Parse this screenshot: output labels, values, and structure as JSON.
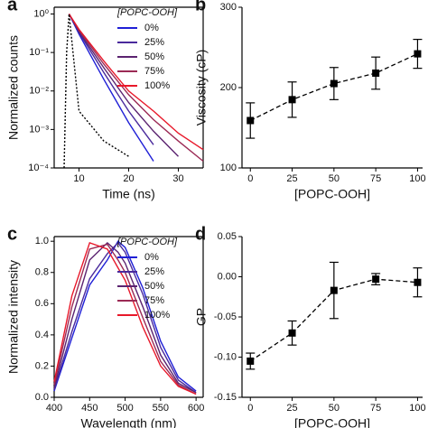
{
  "chart_data": [
    {
      "type": "line",
      "label": "a",
      "xlabel": "Time (ns)",
      "ylabel": "Normalized counts",
      "log_y": true,
      "frame": true,
      "xlim": [
        5,
        35
      ],
      "xticks": [
        10,
        20,
        30
      ],
      "ylim": [
        0.0001,
        1.5
      ],
      "yticks": [
        {
          "value": 0.0001,
          "label": "10⁻⁴"
        },
        {
          "value": 0.001,
          "label": "10⁻³"
        },
        {
          "value": 0.01,
          "label": "10⁻²"
        },
        {
          "value": 0.1,
          "label": "10⁻¹"
        },
        {
          "value": 1,
          "label": "10⁰"
        }
      ],
      "legend_title": "[POPC-OOH]",
      "x": [
        7,
        7.5,
        8,
        10,
        15,
        20,
        25,
        30,
        35
      ],
      "series": [
        {
          "name": "0%",
          "color": "#1f1fd6",
          "values": [
            null,
            null,
            1,
            0.3,
            0.02,
            0.0015,
            0.00015,
            null,
            null
          ]
        },
        {
          "name": "25%",
          "color": "#4a2a9c",
          "values": [
            null,
            null,
            1,
            0.33,
            0.03,
            0.003,
            0.0004,
            null,
            null
          ]
        },
        {
          "name": "50%",
          "color": "#5b2370",
          "values": [
            null,
            null,
            1,
            0.35,
            0.04,
            0.005,
            0.0009,
            0.0002,
            null
          ]
        },
        {
          "name": "75%",
          "color": "#9b2a55",
          "values": [
            null,
            null,
            1,
            0.38,
            0.05,
            0.008,
            0.0018,
            0.0005,
            0.00015
          ]
        },
        {
          "name": "100%",
          "color": "#e8182a",
          "values": [
            null,
            null,
            1,
            0.4,
            0.06,
            0.01,
            0.003,
            0.0008,
            0.0003
          ]
        },
        {
          "color": "#000000",
          "dash": true,
          "values": [
            0.0001,
            0.1,
            1,
            0.003,
            0.0005,
            0.0002,
            null,
            null,
            null
          ]
        }
      ]
    },
    {
      "type": "errorbar",
      "label": "b",
      "xlabel": "[POPC-OOH]",
      "ylabel": "Viscosity (cP)",
      "frame": false,
      "xlim": [
        -5,
        103
      ],
      "xticks": [
        0,
        25,
        50,
        75,
        100
      ],
      "ylim": [
        100,
        300
      ],
      "yticks": [
        100,
        200,
        300
      ],
      "x": [
        0,
        25,
        50,
        75,
        100
      ],
      "values": [
        159,
        185,
        205,
        218,
        242
      ],
      "errors": [
        22,
        22,
        20,
        20,
        18
      ],
      "color": "#000000"
    },
    {
      "type": "line",
      "label": "c",
      "xlabel": "Wavelength (nm)",
      "ylabel": "Normalized intensity",
      "frame": true,
      "xlim": [
        400,
        610
      ],
      "xticks": [
        400,
        450,
        500,
        550,
        600
      ],
      "ylim": [
        0,
        1.03
      ],
      "yticks": [
        {
          "value": 0,
          "label": "0.0"
        },
        {
          "value": 0.2,
          "label": "0.2"
        },
        {
          "value": 0.4,
          "label": "0.4"
        },
        {
          "value": 0.6,
          "label": "0.6"
        },
        {
          "value": 0.8,
          "label": "0.8"
        },
        {
          "value": 1,
          "label": "1.0"
        }
      ],
      "legend_title": "[POPC-OOH]",
      "x": [
        400,
        425,
        450,
        475,
        490,
        500,
        525,
        550,
        575,
        600
      ],
      "series": [
        {
          "name": "0%",
          "color": "#1f1fd6",
          "values": [
            0.04,
            0.38,
            0.72,
            0.88,
            1,
            0.96,
            0.7,
            0.36,
            0.13,
            0.04
          ]
        },
        {
          "name": "25%",
          "color": "#4a2a9c",
          "values": [
            0.05,
            0.42,
            0.76,
            0.92,
            0.99,
            0.93,
            0.66,
            0.32,
            0.11,
            0.03
          ]
        },
        {
          "name": "50%",
          "color": "#5b2370",
          "values": [
            0.06,
            0.5,
            0.88,
            0.99,
            0.93,
            0.86,
            0.58,
            0.27,
            0.09,
            0.03
          ]
        },
        {
          "name": "75%",
          "color": "#9b2a55",
          "values": [
            0.08,
            0.58,
            0.95,
            0.98,
            0.88,
            0.8,
            0.51,
            0.23,
            0.08,
            0.02
          ]
        },
        {
          "name": "100%",
          "color": "#e8182a",
          "values": [
            0.1,
            0.65,
            0.99,
            0.95,
            0.83,
            0.75,
            0.45,
            0.2,
            0.07,
            0.02
          ]
        }
      ]
    },
    {
      "type": "errorbar",
      "label": "d",
      "xlabel": "[POPC-OOH]",
      "ylabel": "GP",
      "frame": false,
      "xlim": [
        -5,
        103
      ],
      "xticks": [
        0,
        25,
        50,
        75,
        100
      ],
      "ylim": [
        -0.15,
        0.05
      ],
      "yticks": [
        {
          "value": -0.15,
          "label": "-0.15"
        },
        {
          "value": -0.1,
          "label": "-0.10"
        },
        {
          "value": -0.05,
          "label": "-0.05"
        },
        {
          "value": 0,
          "label": "0.00"
        },
        {
          "value": 0.05,
          "label": "0.05"
        }
      ],
      "x": [
        0,
        25,
        50,
        75,
        100
      ],
      "values": [
        -0.105,
        -0.07,
        -0.017,
        -0.003,
        -0.007
      ],
      "errors": [
        0.01,
        0.015,
        0.035,
        0.007,
        0.018
      ],
      "color": "#000000"
    }
  ]
}
